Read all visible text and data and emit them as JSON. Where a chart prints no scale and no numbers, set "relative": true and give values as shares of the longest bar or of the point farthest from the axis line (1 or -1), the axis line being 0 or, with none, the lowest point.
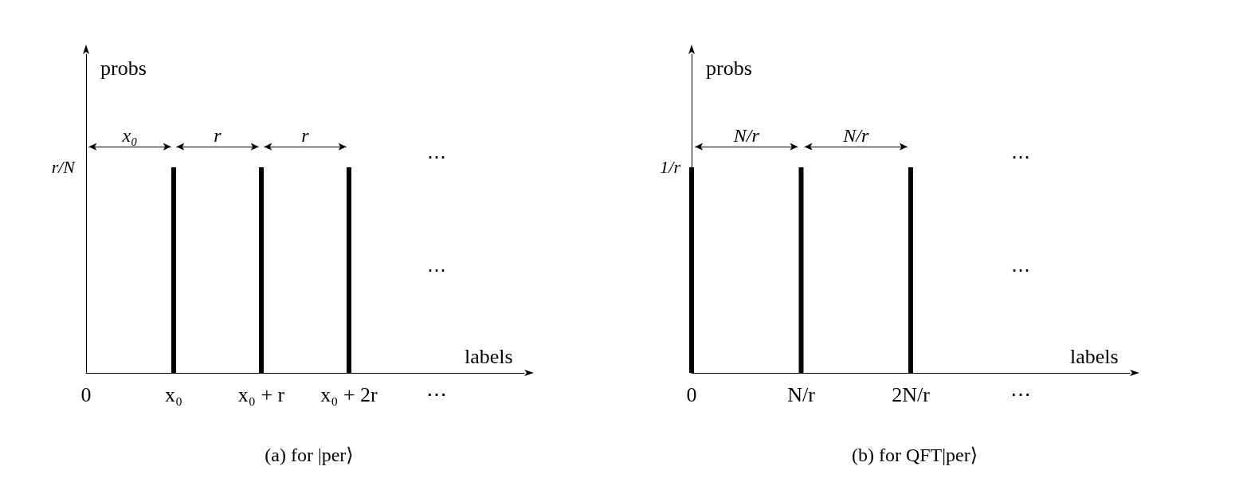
{
  "chart_data": [
    {
      "type": "bar",
      "title": "(a) for |per⟩",
      "xlabel": "labels",
      "ylabel": "probs",
      "relative": true,
      "color": "#000000",
      "categories": [
        "0",
        "x₀",
        "x₀ + r",
        "x₀ + 2r",
        "⋯"
      ],
      "values": [
        null,
        1,
        1,
        1,
        null
      ],
      "annotations": [
        "r/N",
        "x₀",
        "r",
        "r",
        "⋯",
        "⋯"
      ]
    },
    {
      "type": "bar",
      "title": "(b) for QFT|per⟩",
      "xlabel": "labels",
      "ylabel": "probs",
      "relative": true,
      "color": "#000000",
      "categories": [
        "0",
        "N/r",
        "2N/r",
        "⋯"
      ],
      "values": [
        1,
        1,
        1,
        null
      ],
      "annotations": [
        "1/r",
        "N/r",
        "N/r",
        "⋯",
        "⋯"
      ]
    }
  ]
}
